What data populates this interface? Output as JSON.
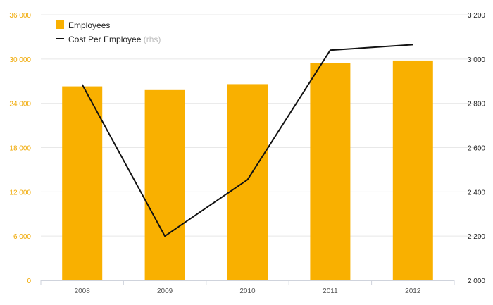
{
  "colors": {
    "bar": "#f9b000",
    "line": "#111111",
    "left_axis_text": "#f0a800",
    "right_axis_text": "#222222",
    "grid": "#e8e8e8"
  },
  "chart_data": {
    "type": "bar",
    "categories": [
      "2008",
      "2009",
      "2010",
      "2011",
      "2012"
    ],
    "series": [
      {
        "name": "Employees",
        "type": "bar",
        "axis": "left",
        "values": [
          26300,
          25800,
          26600,
          29500,
          29800
        ]
      },
      {
        "name": "Cost Per Employee",
        "name_suffix": "(rhs)",
        "type": "line",
        "axis": "right",
        "values": [
          2885,
          2200,
          2455,
          3040,
          3065
        ]
      }
    ],
    "y_left": {
      "ylim": [
        0,
        36000
      ],
      "ticks": [
        0,
        6000,
        12000,
        18000,
        24000,
        30000,
        36000
      ],
      "tick_labels": [
        "0",
        "6 000",
        "12 000",
        "18 000",
        "24 000",
        "30 000",
        "36 000"
      ]
    },
    "y_right": {
      "ylim": [
        2000,
        3200
      ],
      "ticks": [
        2000,
        2200,
        2400,
        2600,
        2800,
        3000,
        3200
      ],
      "tick_labels": [
        "2 000",
        "2 200",
        "2 400",
        "2 600",
        "2 800",
        "3 000",
        "3 200"
      ]
    },
    "grid": true,
    "legend_position": "top-left"
  }
}
